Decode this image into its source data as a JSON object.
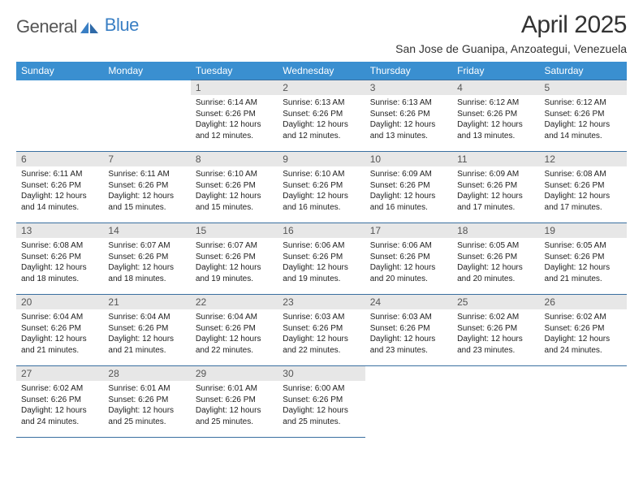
{
  "brand": {
    "part1": "General",
    "part2": "Blue"
  },
  "title": "April 2025",
  "location": "San Jose de Guanipa, Anzoategui, Venezuela",
  "colors": {
    "header_bg": "#3a8fd0",
    "header_fg": "#ffffff",
    "daynum_bg": "#e7e7e7",
    "daynum_fg": "#555555",
    "border": "#3a6fa0",
    "brand_accent": "#3a7fc4"
  },
  "weekdays": [
    "Sunday",
    "Monday",
    "Tuesday",
    "Wednesday",
    "Thursday",
    "Friday",
    "Saturday"
  ],
  "weeks": [
    [
      null,
      null,
      {
        "n": "1",
        "sr": "Sunrise: 6:14 AM",
        "ss": "Sunset: 6:26 PM",
        "d1": "Daylight: 12 hours",
        "d2": "and 12 minutes."
      },
      {
        "n": "2",
        "sr": "Sunrise: 6:13 AM",
        "ss": "Sunset: 6:26 PM",
        "d1": "Daylight: 12 hours",
        "d2": "and 12 minutes."
      },
      {
        "n": "3",
        "sr": "Sunrise: 6:13 AM",
        "ss": "Sunset: 6:26 PM",
        "d1": "Daylight: 12 hours",
        "d2": "and 13 minutes."
      },
      {
        "n": "4",
        "sr": "Sunrise: 6:12 AM",
        "ss": "Sunset: 6:26 PM",
        "d1": "Daylight: 12 hours",
        "d2": "and 13 minutes."
      },
      {
        "n": "5",
        "sr": "Sunrise: 6:12 AM",
        "ss": "Sunset: 6:26 PM",
        "d1": "Daylight: 12 hours",
        "d2": "and 14 minutes."
      }
    ],
    [
      {
        "n": "6",
        "sr": "Sunrise: 6:11 AM",
        "ss": "Sunset: 6:26 PM",
        "d1": "Daylight: 12 hours",
        "d2": "and 14 minutes."
      },
      {
        "n": "7",
        "sr": "Sunrise: 6:11 AM",
        "ss": "Sunset: 6:26 PM",
        "d1": "Daylight: 12 hours",
        "d2": "and 15 minutes."
      },
      {
        "n": "8",
        "sr": "Sunrise: 6:10 AM",
        "ss": "Sunset: 6:26 PM",
        "d1": "Daylight: 12 hours",
        "d2": "and 15 minutes."
      },
      {
        "n": "9",
        "sr": "Sunrise: 6:10 AM",
        "ss": "Sunset: 6:26 PM",
        "d1": "Daylight: 12 hours",
        "d2": "and 16 minutes."
      },
      {
        "n": "10",
        "sr": "Sunrise: 6:09 AM",
        "ss": "Sunset: 6:26 PM",
        "d1": "Daylight: 12 hours",
        "d2": "and 16 minutes."
      },
      {
        "n": "11",
        "sr": "Sunrise: 6:09 AM",
        "ss": "Sunset: 6:26 PM",
        "d1": "Daylight: 12 hours",
        "d2": "and 17 minutes."
      },
      {
        "n": "12",
        "sr": "Sunrise: 6:08 AM",
        "ss": "Sunset: 6:26 PM",
        "d1": "Daylight: 12 hours",
        "d2": "and 17 minutes."
      }
    ],
    [
      {
        "n": "13",
        "sr": "Sunrise: 6:08 AM",
        "ss": "Sunset: 6:26 PM",
        "d1": "Daylight: 12 hours",
        "d2": "and 18 minutes."
      },
      {
        "n": "14",
        "sr": "Sunrise: 6:07 AM",
        "ss": "Sunset: 6:26 PM",
        "d1": "Daylight: 12 hours",
        "d2": "and 18 minutes."
      },
      {
        "n": "15",
        "sr": "Sunrise: 6:07 AM",
        "ss": "Sunset: 6:26 PM",
        "d1": "Daylight: 12 hours",
        "d2": "and 19 minutes."
      },
      {
        "n": "16",
        "sr": "Sunrise: 6:06 AM",
        "ss": "Sunset: 6:26 PM",
        "d1": "Daylight: 12 hours",
        "d2": "and 19 minutes."
      },
      {
        "n": "17",
        "sr": "Sunrise: 6:06 AM",
        "ss": "Sunset: 6:26 PM",
        "d1": "Daylight: 12 hours",
        "d2": "and 20 minutes."
      },
      {
        "n": "18",
        "sr": "Sunrise: 6:05 AM",
        "ss": "Sunset: 6:26 PM",
        "d1": "Daylight: 12 hours",
        "d2": "and 20 minutes."
      },
      {
        "n": "19",
        "sr": "Sunrise: 6:05 AM",
        "ss": "Sunset: 6:26 PM",
        "d1": "Daylight: 12 hours",
        "d2": "and 21 minutes."
      }
    ],
    [
      {
        "n": "20",
        "sr": "Sunrise: 6:04 AM",
        "ss": "Sunset: 6:26 PM",
        "d1": "Daylight: 12 hours",
        "d2": "and 21 minutes."
      },
      {
        "n": "21",
        "sr": "Sunrise: 6:04 AM",
        "ss": "Sunset: 6:26 PM",
        "d1": "Daylight: 12 hours",
        "d2": "and 21 minutes."
      },
      {
        "n": "22",
        "sr": "Sunrise: 6:04 AM",
        "ss": "Sunset: 6:26 PM",
        "d1": "Daylight: 12 hours",
        "d2": "and 22 minutes."
      },
      {
        "n": "23",
        "sr": "Sunrise: 6:03 AM",
        "ss": "Sunset: 6:26 PM",
        "d1": "Daylight: 12 hours",
        "d2": "and 22 minutes."
      },
      {
        "n": "24",
        "sr": "Sunrise: 6:03 AM",
        "ss": "Sunset: 6:26 PM",
        "d1": "Daylight: 12 hours",
        "d2": "and 23 minutes."
      },
      {
        "n": "25",
        "sr": "Sunrise: 6:02 AM",
        "ss": "Sunset: 6:26 PM",
        "d1": "Daylight: 12 hours",
        "d2": "and 23 minutes."
      },
      {
        "n": "26",
        "sr": "Sunrise: 6:02 AM",
        "ss": "Sunset: 6:26 PM",
        "d1": "Daylight: 12 hours",
        "d2": "and 24 minutes."
      }
    ],
    [
      {
        "n": "27",
        "sr": "Sunrise: 6:02 AM",
        "ss": "Sunset: 6:26 PM",
        "d1": "Daylight: 12 hours",
        "d2": "and 24 minutes."
      },
      {
        "n": "28",
        "sr": "Sunrise: 6:01 AM",
        "ss": "Sunset: 6:26 PM",
        "d1": "Daylight: 12 hours",
        "d2": "and 25 minutes."
      },
      {
        "n": "29",
        "sr": "Sunrise: 6:01 AM",
        "ss": "Sunset: 6:26 PM",
        "d1": "Daylight: 12 hours",
        "d2": "and 25 minutes."
      },
      {
        "n": "30",
        "sr": "Sunrise: 6:00 AM",
        "ss": "Sunset: 6:26 PM",
        "d1": "Daylight: 12 hours",
        "d2": "and 25 minutes."
      },
      null,
      null,
      null
    ]
  ]
}
